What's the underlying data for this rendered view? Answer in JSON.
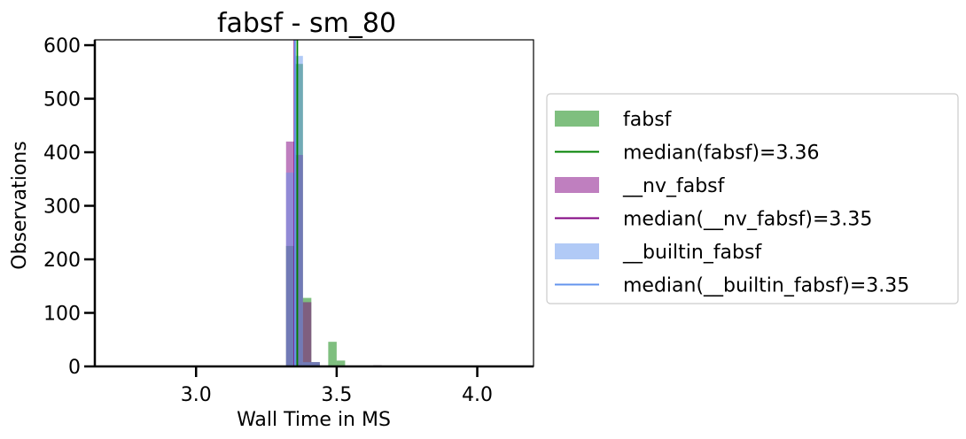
{
  "chart_data": {
    "type": "histogram",
    "title": "fabsf - sm_80",
    "xlabel": "Wall Time in MS",
    "ylabel": "Observations",
    "xlim": [
      2.64,
      4.2
    ],
    "ylim": [
      0,
      610
    ],
    "xticks": [
      {
        "value": 3.0,
        "label": "3.0"
      },
      {
        "value": 3.5,
        "label": "3.5"
      },
      {
        "value": 4.0,
        "label": "4.0"
      }
    ],
    "yticks": [
      {
        "value": 0,
        "label": "0"
      },
      {
        "value": 100,
        "label": "100"
      },
      {
        "value": 200,
        "label": "200"
      },
      {
        "value": 300,
        "label": "300"
      },
      {
        "value": 400,
        "label": "400"
      },
      {
        "value": 500,
        "label": "500"
      },
      {
        "value": 600,
        "label": "600"
      }
    ],
    "grid": false,
    "legend_position": "right-outside",
    "series": [
      {
        "name": "fabsf",
        "color": "#008000",
        "opacity": 0.5,
        "bin_width": 0.03,
        "bins": [
          {
            "x0": 3.32,
            "count": 225
          },
          {
            "x0": 3.35,
            "count": 565
          },
          {
            "x0": 3.38,
            "count": 128
          },
          {
            "x0": 3.41,
            "count": 8
          },
          {
            "x0": 3.47,
            "count": 46
          },
          {
            "x0": 3.5,
            "count": 11
          },
          {
            "x0": 3.63,
            "count": 2
          }
        ],
        "median_label": "median(fabsf)=3.36",
        "median": 3.36
      },
      {
        "name": "__nv_fabsf",
        "color": "#800080",
        "opacity": 0.5,
        "bin_width": 0.03,
        "bins": [
          {
            "x0": 3.32,
            "count": 420
          },
          {
            "x0": 3.35,
            "count": 395
          },
          {
            "x0": 3.38,
            "count": 120
          },
          {
            "x0": 3.41,
            "count": 8
          },
          {
            "x0": 3.63,
            "count": 2
          }
        ],
        "median_label": "median(__nv_fabsf)=3.35",
        "median": 3.35
      },
      {
        "name": "__builtin_fabsf",
        "color": "#6495ed",
        "opacity": 0.5,
        "bin_width": 0.03,
        "bins": [
          {
            "x0": 3.32,
            "count": 362
          },
          {
            "x0": 3.35,
            "count": 580
          },
          {
            "x0": 3.38,
            "count": 8
          },
          {
            "x0": 3.41,
            "count": 8
          }
        ],
        "median_label": "median(__builtin_fabsf)=3.35",
        "median": 3.352
      }
    ]
  }
}
